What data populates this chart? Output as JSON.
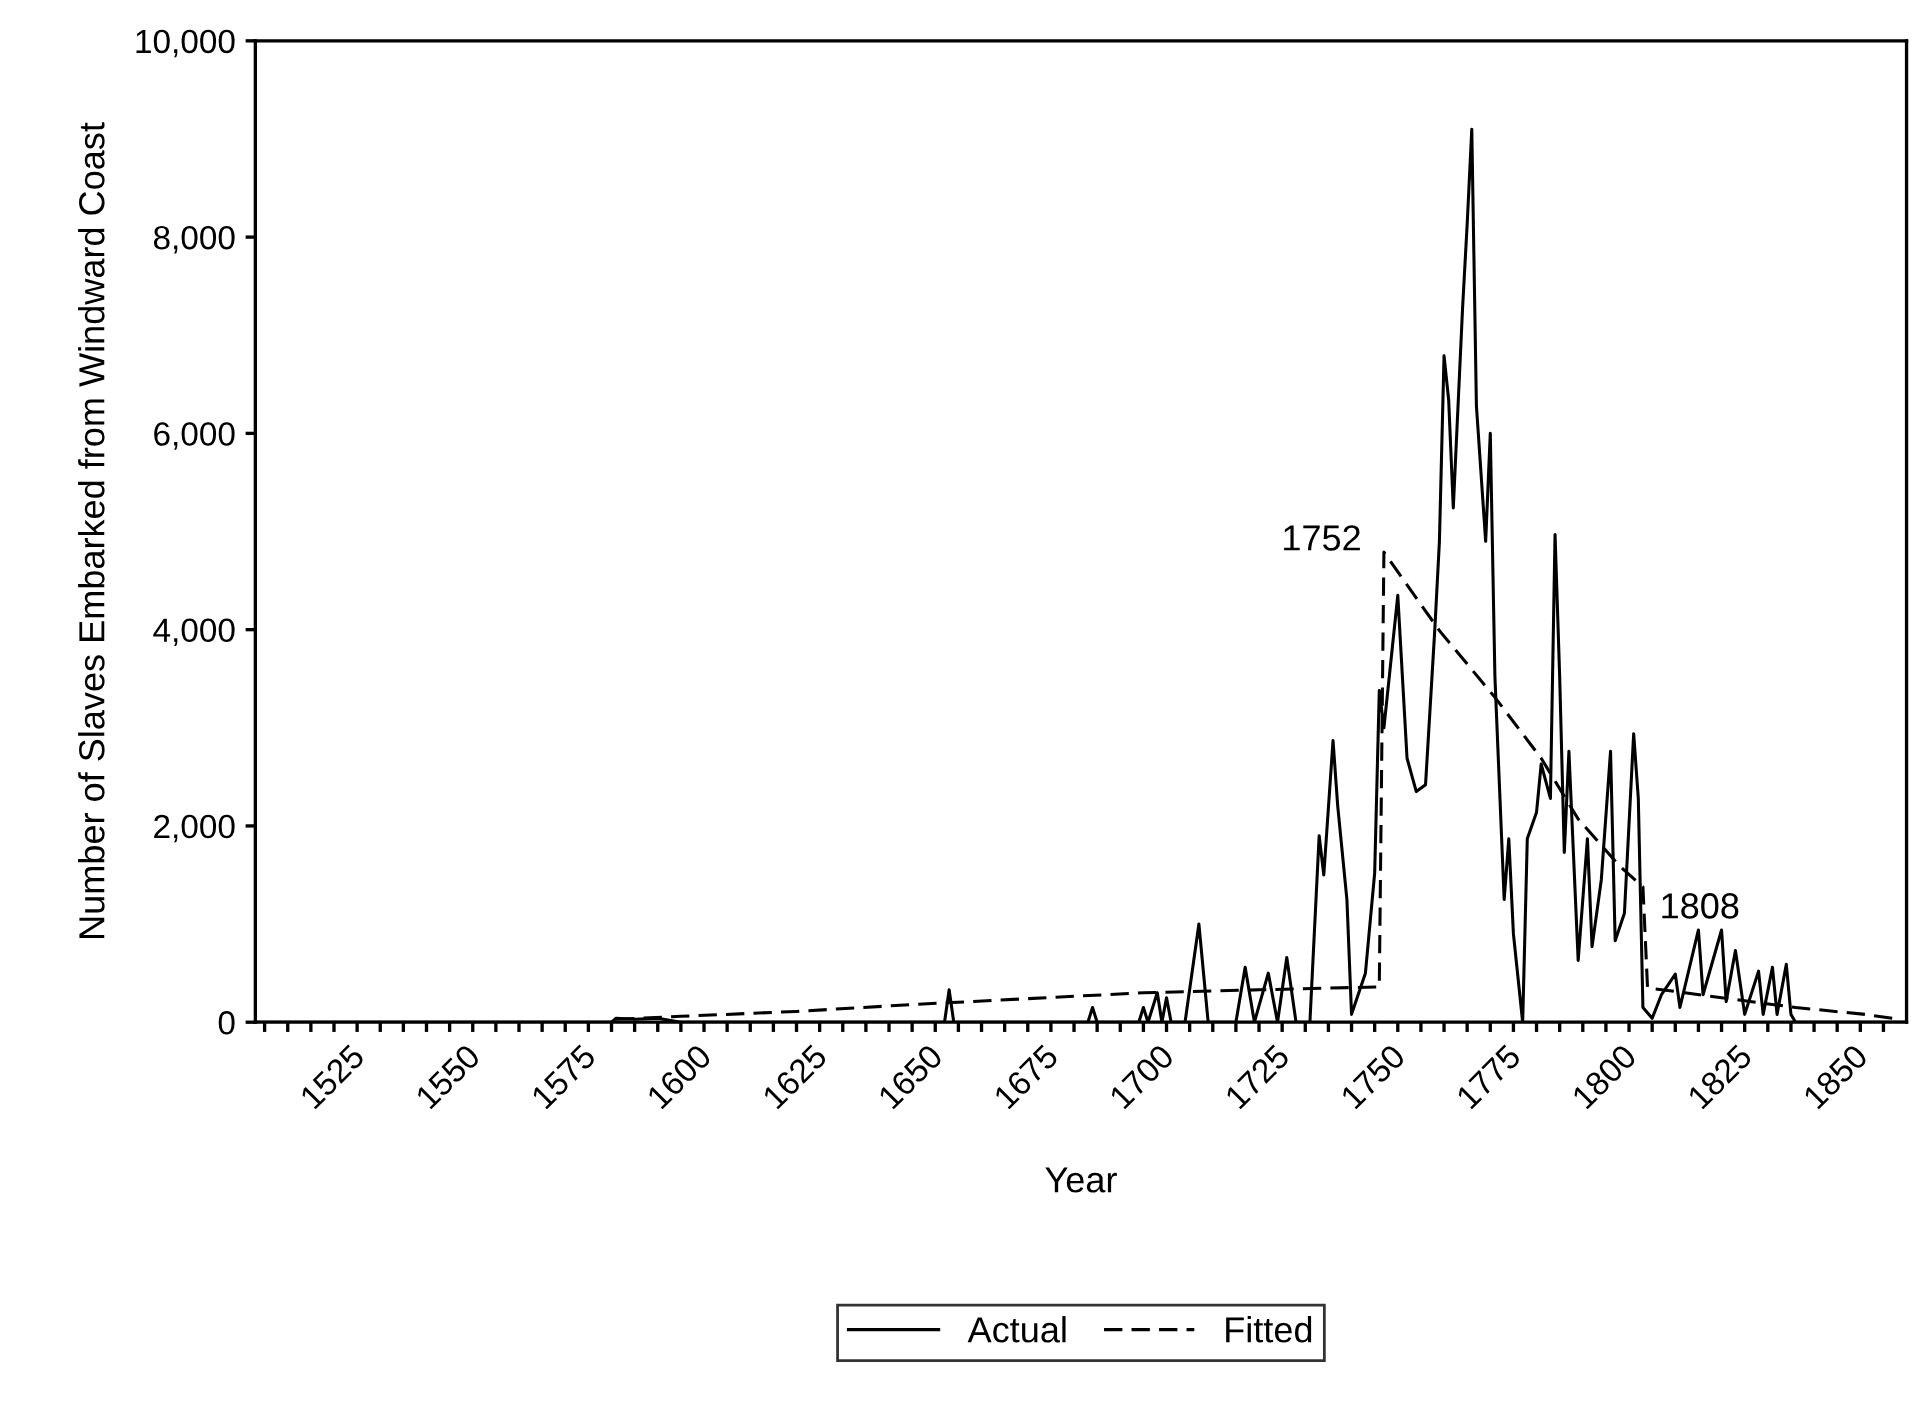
{
  "chart_data": {
    "type": "line",
    "xlabel": "Year",
    "ylabel": "Number of Slaves Embarked from Windward Coast",
    "xlim": [
      1508,
      1865
    ],
    "ylim": [
      0,
      10000
    ],
    "xticks": [
      {
        "value": 1510,
        "label": null
      },
      {
        "value": 1515,
        "label": null
      },
      {
        "value": 1520,
        "label": null
      },
      1525,
      {
        "value": 1530,
        "label": null
      },
      {
        "value": 1535,
        "label": null
      },
      {
        "value": 1540,
        "label": null
      },
      {
        "value": 1545,
        "label": null
      },
      1550,
      {
        "value": 1555,
        "label": null
      },
      {
        "value": 1560,
        "label": null
      },
      {
        "value": 1565,
        "label": null
      },
      {
        "value": 1570,
        "label": null
      },
      1575,
      {
        "value": 1580,
        "label": null
      },
      {
        "value": 1585,
        "label": null
      },
      {
        "value": 1590,
        "label": null
      },
      {
        "value": 1595,
        "label": null
      },
      1600,
      {
        "value": 1605,
        "label": null
      },
      {
        "value": 1610,
        "label": null
      },
      {
        "value": 1615,
        "label": null
      },
      {
        "value": 1620,
        "label": null
      },
      1625,
      {
        "value": 1630,
        "label": null
      },
      {
        "value": 1635,
        "label": null
      },
      {
        "value": 1640,
        "label": null
      },
      {
        "value": 1645,
        "label": null
      },
      1650,
      {
        "value": 1655,
        "label": null
      },
      {
        "value": 1660,
        "label": null
      },
      {
        "value": 1665,
        "label": null
      },
      {
        "value": 1670,
        "label": null
      },
      1675,
      {
        "value": 1680,
        "label": null
      },
      {
        "value": 1685,
        "label": null
      },
      {
        "value": 1690,
        "label": null
      },
      {
        "value": 1695,
        "label": null
      },
      1700,
      {
        "value": 1705,
        "label": null
      },
      {
        "value": 1710,
        "label": null
      },
      {
        "value": 1715,
        "label": null
      },
      {
        "value": 1720,
        "label": null
      },
      1725,
      {
        "value": 1730,
        "label": null
      },
      {
        "value": 1735,
        "label": null
      },
      {
        "value": 1740,
        "label": null
      },
      {
        "value": 1745,
        "label": null
      },
      1750,
      {
        "value": 1755,
        "label": null
      },
      {
        "value": 1760,
        "label": null
      },
      {
        "value": 1765,
        "label": null
      },
      {
        "value": 1770,
        "label": null
      },
      1775,
      {
        "value": 1780,
        "label": null
      },
      {
        "value": 1785,
        "label": null
      },
      {
        "value": 1790,
        "label": null
      },
      {
        "value": 1795,
        "label": null
      },
      1800,
      {
        "value": 1805,
        "label": null
      },
      {
        "value": 1810,
        "label": null
      },
      {
        "value": 1815,
        "label": null
      },
      {
        "value": 1820,
        "label": null
      },
      1825,
      {
        "value": 1830,
        "label": null
      },
      {
        "value": 1835,
        "label": null
      },
      {
        "value": 1840,
        "label": null
      },
      {
        "value": 1845,
        "label": null
      },
      1850,
      {
        "value": 1855,
        "label": null
      },
      {
        "value": 1860,
        "label": null
      }
    ],
    "yticks": [
      0,
      {
        "value": 2000,
        "label": "2,000"
      },
      {
        "value": 4000,
        "label": "4,000"
      },
      {
        "value": 6000,
        "label": "6,000"
      },
      {
        "value": 8000,
        "label": "8,000"
      },
      {
        "value": 10000,
        "label": "10,000"
      }
    ],
    "legend": "bottom",
    "grid": false,
    "series": [
      {
        "name": "Actual",
        "color": "#000000",
        "line_style": "solid",
        "x": [
          1508,
          1585,
          1586,
          1590,
          1595,
          1600,
          1657,
          1658,
          1659,
          1688,
          1689,
          1690,
          1699,
          1700,
          1701,
          1703,
          1704,
          1705,
          1706,
          1709,
          1712,
          1714,
          1720,
          1722,
          1724,
          1727,
          1729,
          1731,
          1733,
          1736,
          1738,
          1739,
          1741,
          1742,
          1744,
          1745,
          1748,
          1750,
          1751,
          1752,
          1755,
          1757,
          1759,
          1761,
          1763,
          1764,
          1765,
          1766,
          1767,
          1769,
          1770,
          1771,
          1772,
          1774,
          1775,
          1776,
          1778,
          1779,
          1780,
          1782,
          1783,
          1785,
          1786,
          1788,
          1789,
          1790,
          1791,
          1792,
          1794,
          1796,
          1797,
          1799,
          1801,
          1802,
          1804,
          1806,
          1807,
          1808,
          1810,
          1812,
          1815,
          1816,
          1820,
          1821,
          1825,
          1826,
          1828,
          1830,
          1833,
          1834,
          1836,
          1837,
          1839,
          1840,
          1841,
          1865
        ],
        "values": [
          0,
          0,
          40,
          30,
          40,
          0,
          0,
          330,
          0,
          0,
          150,
          0,
          0,
          150,
          0,
          300,
          0,
          250,
          0,
          0,
          1000,
          0,
          0,
          560,
          0,
          500,
          0,
          660,
          0,
          0,
          1900,
          1500,
          2870,
          2210,
          1250,
          80,
          500,
          1520,
          3380,
          3000,
          4350,
          2690,
          2350,
          2420,
          4000,
          4900,
          6790,
          6340,
          5240,
          7270,
          8130,
          9100,
          6280,
          4900,
          6000,
          3520,
          1250,
          1870,
          900,
          0,
          1870,
          2140,
          2630,
          2280,
          4970,
          3520,
          1730,
          2760,
          630,
          1870,
          770,
          1450,
          2760,
          830,
          1110,
          2940,
          2280,
          150,
          40,
          280,
          490,
          150,
          940,
          280,
          940,
          210,
          730,
          80,
          520,
          80,
          560,
          80,
          590,
          80,
          0,
          0
        ]
      },
      {
        "name": "Fitted",
        "color": "#000000",
        "line_style": "dashed",
        "x": [
          1586,
          1600,
          1625,
          1650,
          1675,
          1700,
          1725,
          1751,
          1752,
          1764,
          1776,
          1786,
          1794,
          1803,
          1808,
          1809,
          1825,
          1841,
          1856,
          1862
        ],
        "values": [
          30,
          60,
          110,
          180,
          240,
          300,
          330,
          360,
          4790,
          3990,
          3310,
          2690,
          2070,
          1590,
          1380,
          350,
          250,
          150,
          80,
          40
        ]
      }
    ],
    "annotations": [
      {
        "text": "1752",
        "x": 1752,
        "y": 4790
      },
      {
        "text": "1808",
        "x": 1808,
        "y": 1380
      }
    ]
  }
}
